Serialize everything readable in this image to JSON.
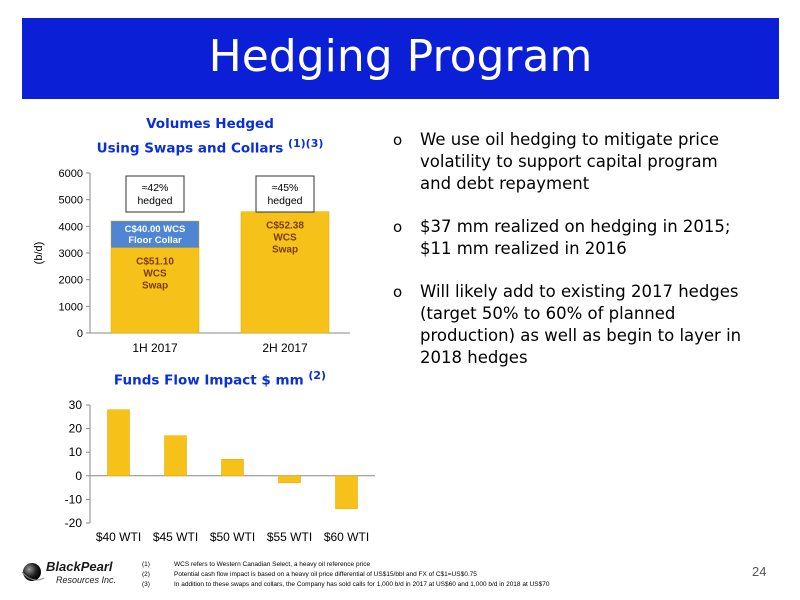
{
  "slide": {
    "title": "Hedging Program",
    "page_number": "24"
  },
  "chart_data": [
    {
      "type": "bar",
      "title": "Volumes Hedged",
      "title_line2": "Using Swaps and Collars",
      "title_sup": "(1)(3)",
      "ylabel": "(b/d)",
      "ylim": [
        0,
        6000
      ],
      "yticks": [
        "0",
        "1000",
        "2000",
        "3000",
        "4000",
        "5000",
        "6000"
      ],
      "categories": [
        "1H 2017",
        "2H 2017"
      ],
      "series": [
        {
          "name": "C$51.10 WCS Swap",
          "values": [
            3200,
            0
          ]
        },
        {
          "name": "C$40.00 WCS Floor Collar",
          "values": [
            1000,
            0
          ]
        },
        {
          "name": "C$52.38 WCS Swap",
          "values": [
            0,
            4550
          ]
        }
      ],
      "segment_labels": [
        {
          "lines": [
            "C$51.10",
            "WCS",
            "Swap"
          ]
        },
        {
          "lines": [
            "C$40.00 WCS",
            "Floor Collar"
          ]
        },
        {
          "lines": [
            "C$52.38",
            "WCS",
            "Swap"
          ]
        }
      ],
      "annotations": [
        {
          "lines": [
            "≈42%",
            "hedged"
          ]
        },
        {
          "lines": [
            "≈45%",
            "hedged"
          ]
        }
      ],
      "colors": {
        "swap": "#f6c21a",
        "collar": "#4f86d3"
      },
      "grid": false
    },
    {
      "type": "bar",
      "title": "Funds Flow Impact $ mm",
      "title_sup": "(2)",
      "ylim": [
        -20,
        30
      ],
      "yticks": [
        "-20",
        "-10",
        "0",
        "10",
        "20",
        "30"
      ],
      "categories": [
        "$40 WTI",
        "$45 WTI",
        "$50 WTI",
        "$55 WTI",
        "$60 WTI"
      ],
      "values": [
        28,
        17,
        7,
        -3,
        -14
      ],
      "colors": {
        "bar": "#f6c21a"
      },
      "grid": false
    }
  ],
  "bullets": [
    {
      "mark": "o",
      "text": "We use oil hedging to mitigate price volatility to support capital program and debt repayment"
    },
    {
      "mark": "o",
      "text": "$37 mm realized on hedging in 2015; $11 mm realized in 2016"
    },
    {
      "mark": "o",
      "text": "Will likely add to existing 2017 hedges (target 50% to 60% of planned production) as well as begin to layer in 2018 hedges"
    }
  ],
  "logo": {
    "name": "BlackPearl",
    "sub": "Resources Inc."
  },
  "footnotes": [
    {
      "num": "(1)",
      "text": "WCS refers to Western Canadian Select, a heavy oil reference price"
    },
    {
      "num": "(2)",
      "text": "Potential cash flow impact is based on a heavy oil price differential of US$15/bbl and FX of C$1=US$0.75"
    },
    {
      "num": "(3)",
      "text": "In addition to these swaps and collars, the Company has sold calls for 1,000 b/d in 2017 at US$60 and 1,000 b/d in 2018 at US$70"
    }
  ],
  "colors": {
    "header": "#0a1fd6",
    "chart_title": "#0a2fd8"
  }
}
